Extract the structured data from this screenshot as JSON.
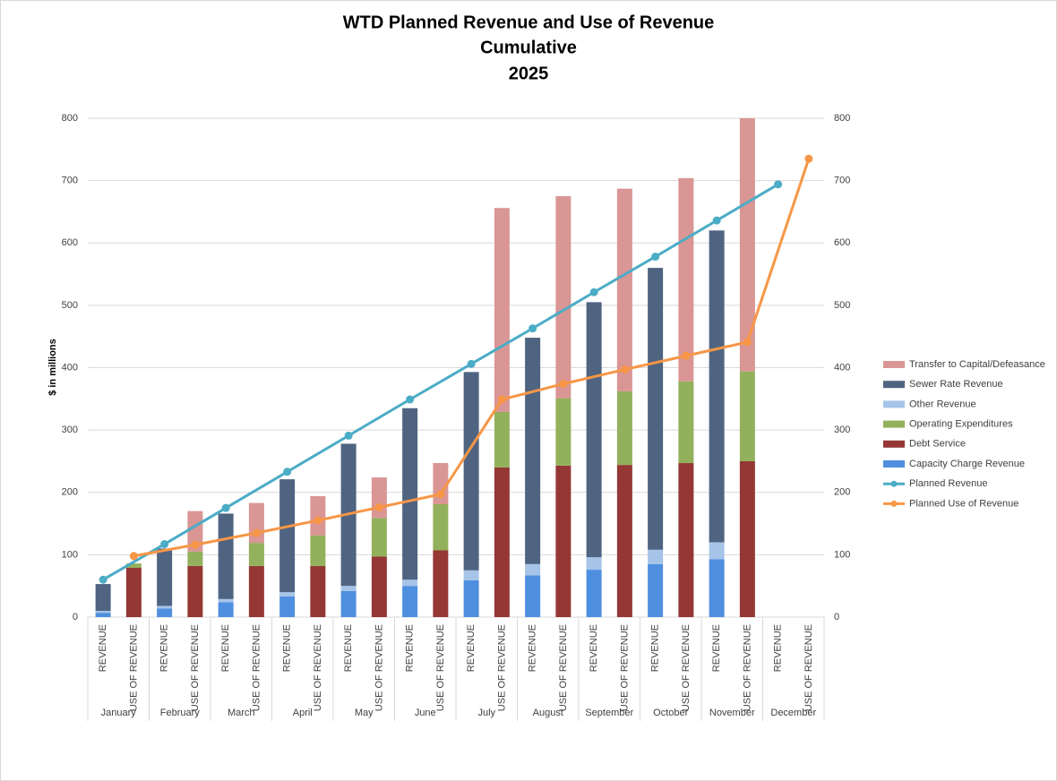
{
  "chart_data": {
    "type": "bar",
    "title": [
      "WTD Planned Revenue and Use of Revenue",
      "Cumulative",
      "2025"
    ],
    "y_label": "$ in millions",
    "categories": [
      "January",
      "February",
      "March",
      "April",
      "May",
      "June",
      "July",
      "August",
      "September",
      "October",
      "November",
      "December"
    ],
    "sub_categories": [
      "REVENUE",
      "USE OF REVENUE"
    ],
    "ylim": [
      0,
      800
    ],
    "yticks": [
      0,
      100,
      200,
      300,
      400,
      500,
      600,
      700,
      800
    ],
    "y2lim": [
      0,
      800
    ],
    "y2ticks": [
      0,
      100,
      200,
      300,
      400,
      500,
      600,
      700,
      800
    ],
    "grid": true,
    "legend": "right",
    "series": [
      {
        "name": "Transfer to Capital/Defeasance",
        "color": "#d99694",
        "kind": "bar",
        "slot": 1,
        "values": [
          0,
          65,
          64,
          63,
          65,
          66,
          327,
          324,
          325,
          326,
          406,
          null
        ]
      },
      {
        "name": "Sewer Rate Revenue",
        "color": "#4f6481",
        "kind": "bar",
        "slot": 0,
        "values": [
          43,
          92,
          137,
          181,
          228,
          275,
          318,
          363,
          409,
          452,
          500,
          null
        ]
      },
      {
        "name": "Other Revenue",
        "color": "#a6c4e8",
        "kind": "bar",
        "slot": 0,
        "values": [
          3,
          4,
          5,
          7,
          8,
          10,
          16,
          18,
          20,
          23,
          27,
          null
        ]
      },
      {
        "name": "Operating Expenditures",
        "color": "#93b05c",
        "kind": "bar",
        "slot": 1,
        "values": [
          7,
          23,
          37,
          49,
          62,
          74,
          89,
          108,
          118,
          131,
          144,
          null
        ]
      },
      {
        "name": "Debt Service",
        "color": "#953735",
        "kind": "bar",
        "slot": 1,
        "values": [
          79,
          82,
          82,
          82,
          97,
          107,
          240,
          243,
          244,
          247,
          250,
          null
        ]
      },
      {
        "name": "Capacity Charge Revenue",
        "color": "#4f8fdf",
        "kind": "bar",
        "slot": 0,
        "values": [
          7,
          14,
          24,
          33,
          42,
          50,
          59,
          67,
          76,
          85,
          93,
          null
        ]
      },
      {
        "name": "Planned Revenue",
        "color": "#4bacc6",
        "kind": "line",
        "slot": 0,
        "values": [
          60,
          117,
          175,
          233,
          291,
          349,
          406,
          463,
          521,
          578,
          636,
          694
        ]
      },
      {
        "name": "Planned Use of Revenue",
        "color": "#f79646",
        "kind": "line",
        "slot": 1,
        "values": [
          98,
          116,
          135,
          155,
          176,
          197,
          349,
          374,
          397,
          419,
          441,
          735
        ]
      }
    ]
  }
}
